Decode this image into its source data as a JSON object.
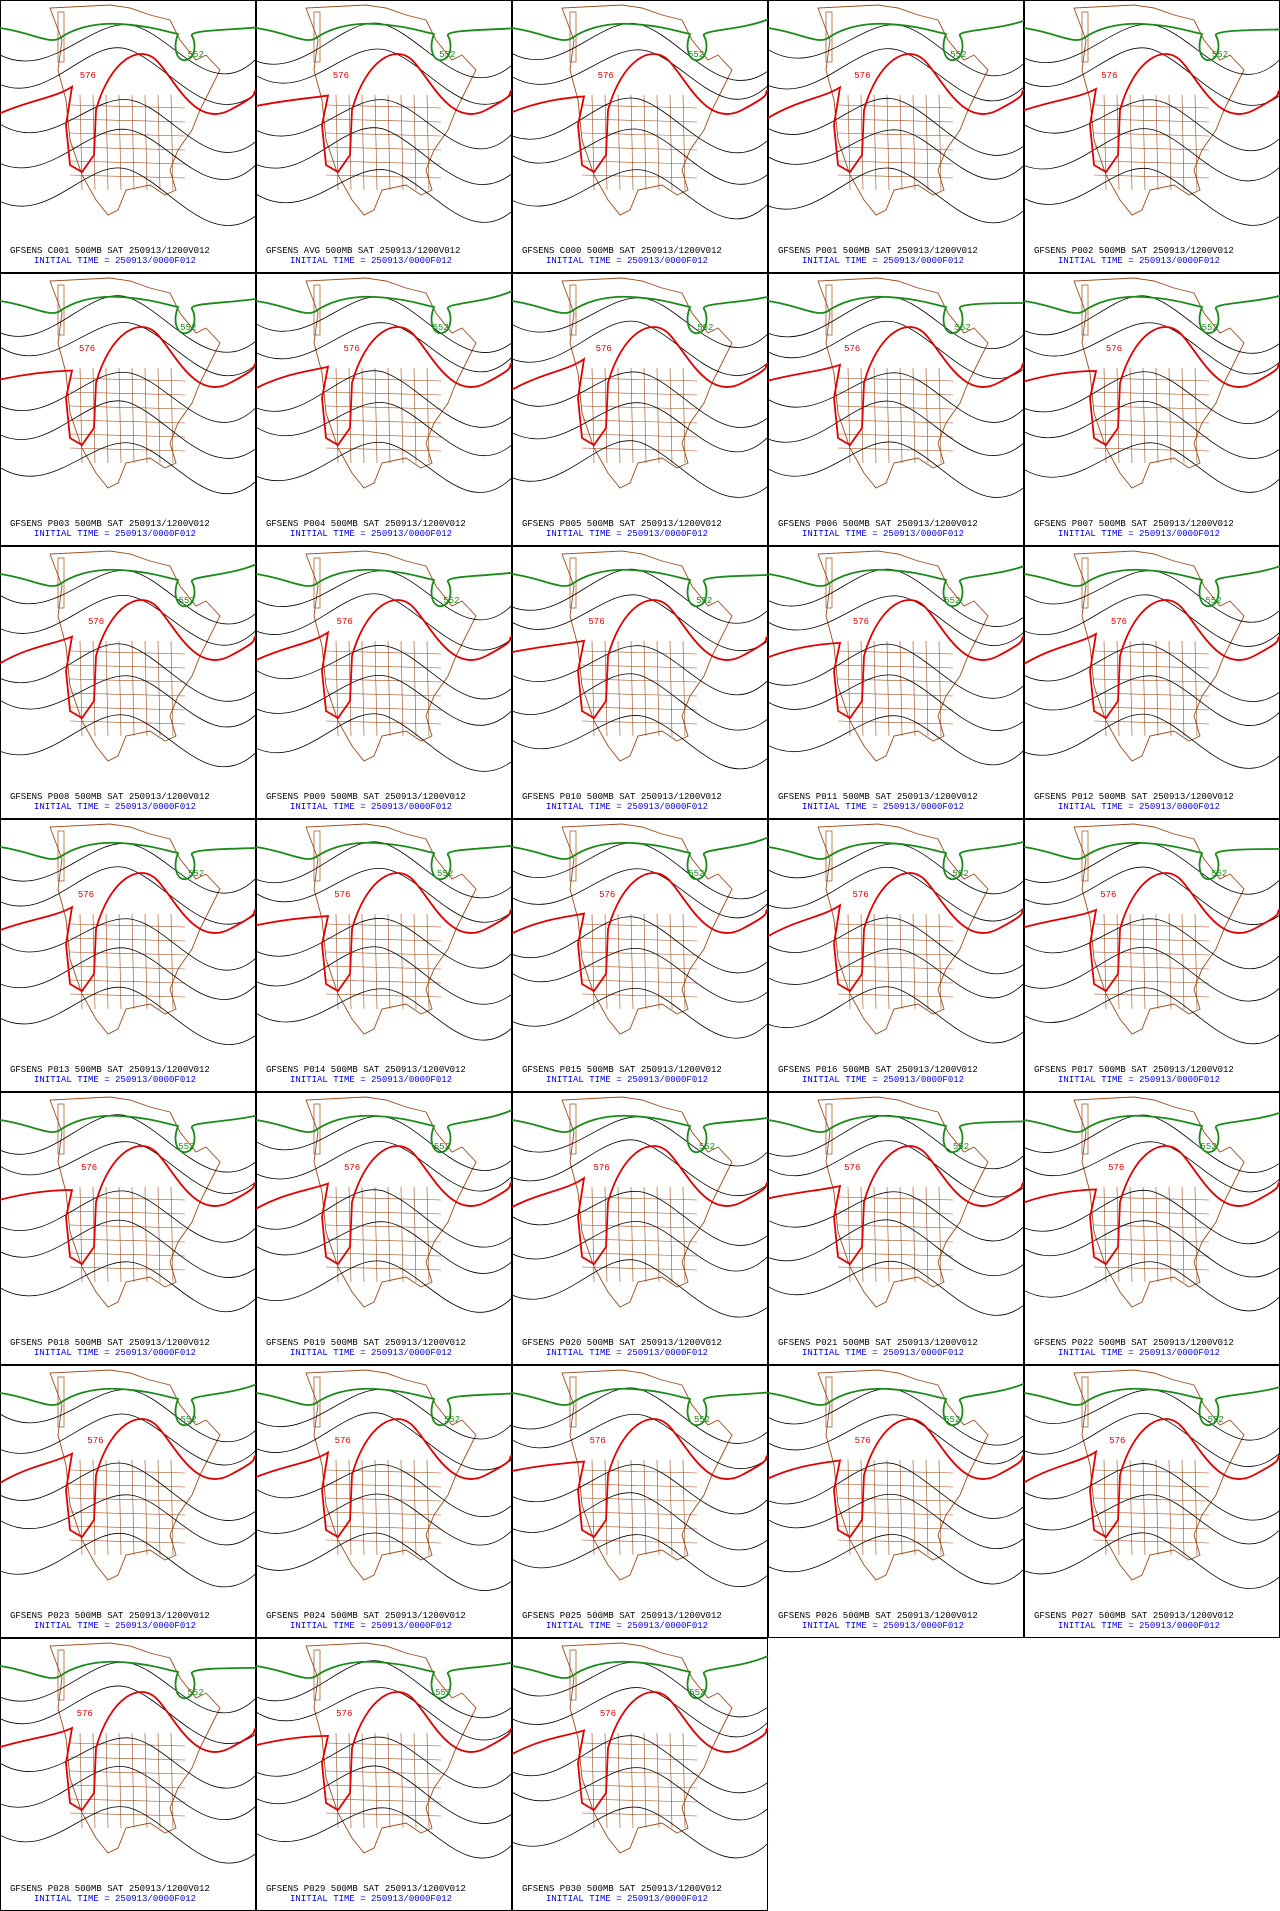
{
  "panels": [
    {
      "title": "GFSENS C001 500MB SAT 250913/1200V012",
      "init": "INITIAL TIME = 250913/0000F012",
      "labels": [
        {
          "text": "552",
          "color": "#1a8a1a"
        },
        {
          "text": "576",
          "color": "#e00000"
        }
      ]
    },
    {
      "title": "GFSENS AVG 500MB SAT 250913/1200V012",
      "init": "INITIAL TIME = 250913/0000F012",
      "labels": [
        {
          "text": "552",
          "color": "#1a8a1a"
        },
        {
          "text": "576",
          "color": "#e00000"
        }
      ]
    },
    {
      "title": "GFSENS C000 500MB SAT 250913/1200V012",
      "init": "INITIAL TIME = 250913/0000F012",
      "labels": [
        {
          "text": "552",
          "color": "#1a8a1a"
        },
        {
          "text": "576",
          "color": "#e00000"
        }
      ]
    },
    {
      "title": "GFSENS P001 500MB SAT 250913/1200V012",
      "init": "INITIAL TIME = 250913/0000F012",
      "labels": [
        {
          "text": "552",
          "color": "#1a8a1a"
        },
        {
          "text": "576",
          "color": "#e00000"
        }
      ]
    },
    {
      "title": "GFSENS P002 500MB SAT 250913/1200V012",
      "init": "INITIAL TIME = 250913/0000F012",
      "labels": [
        {
          "text": "552",
          "color": "#1a8a1a"
        },
        {
          "text": "576",
          "color": "#e00000"
        }
      ]
    },
    {
      "title": "GFSENS P003 500MB SAT 250913/1200V012",
      "init": "INITIAL TIME = 250913/0000F012",
      "labels": [
        {
          "text": "552",
          "color": "#1a8a1a"
        },
        {
          "text": "576",
          "color": "#e00000"
        }
      ]
    },
    {
      "title": "GFSENS P004 500MB SAT 250913/1200V012",
      "init": "INITIAL TIME = 250913/0000F012",
      "labels": [
        {
          "text": "552",
          "color": "#1a8a1a"
        },
        {
          "text": "576",
          "color": "#e00000"
        }
      ]
    },
    {
      "title": "GFSENS P005 500MB SAT 250913/1200V012",
      "init": "INITIAL TIME = 250913/0000F012",
      "labels": [
        {
          "text": "552",
          "color": "#1a8a1a"
        },
        {
          "text": "576",
          "color": "#e00000"
        }
      ]
    },
    {
      "title": "GFSENS P006 500MB SAT 250913/1200V012",
      "init": "INITIAL TIME = 250913/0000F012",
      "labels": [
        {
          "text": "552",
          "color": "#1a8a1a"
        },
        {
          "text": "576",
          "color": "#e00000"
        }
      ]
    },
    {
      "title": "GFSENS P007 500MB SAT 250913/1200V012",
      "init": "INITIAL TIME = 250913/0000F012",
      "labels": [
        {
          "text": "552",
          "color": "#1a8a1a"
        },
        {
          "text": "576",
          "color": "#e00000"
        }
      ]
    },
    {
      "title": "GFSENS P008 500MB SAT 250913/1200V012",
      "init": "INITIAL TIME = 250913/0000F012",
      "labels": [
        {
          "text": "552",
          "color": "#1a8a1a"
        },
        {
          "text": "576",
          "color": "#e00000"
        }
      ]
    },
    {
      "title": "GFSENS P009 500MB SAT 250913/1200V012",
      "init": "INITIAL TIME = 250913/0000F012",
      "labels": [
        {
          "text": "552",
          "color": "#1a8a1a"
        },
        {
          "text": "576",
          "color": "#e00000"
        }
      ]
    },
    {
      "title": "GFSENS P010 500MB SAT 250913/1200V012",
      "init": "INITIAL TIME = 250913/0000F012",
      "labels": [
        {
          "text": "552",
          "color": "#1a8a1a"
        },
        {
          "text": "576",
          "color": "#e00000"
        }
      ]
    },
    {
      "title": "GFSENS P011 500MB SAT 250913/1200V012",
      "init": "INITIAL TIME = 250913/0000F012",
      "labels": [
        {
          "text": "552",
          "color": "#1a8a1a"
        },
        {
          "text": "576",
          "color": "#e00000"
        }
      ]
    },
    {
      "title": "GFSENS P012 500MB SAT 250913/1200V012",
      "init": "INITIAL TIME = 250913/0000F012",
      "labels": [
        {
          "text": "552",
          "color": "#1a8a1a"
        },
        {
          "text": "576",
          "color": "#e00000"
        }
      ]
    },
    {
      "title": "GFSENS P013 500MB SAT 250913/1200V012",
      "init": "INITIAL TIME = 250913/0000F012",
      "labels": [
        {
          "text": "552",
          "color": "#1a8a1a"
        },
        {
          "text": "576",
          "color": "#e00000"
        }
      ]
    },
    {
      "title": "GFSENS P014 500MB SAT 250913/1200V012",
      "init": "INITIAL TIME = 250913/0000F012",
      "labels": [
        {
          "text": "552",
          "color": "#1a8a1a"
        },
        {
          "text": "576",
          "color": "#e00000"
        }
      ]
    },
    {
      "title": "GFSENS P015 500MB SAT 250913/1200V012",
      "init": "INITIAL TIME = 250913/0000F012",
      "labels": [
        {
          "text": "552",
          "color": "#1a8a1a"
        },
        {
          "text": "576",
          "color": "#e00000"
        }
      ]
    },
    {
      "title": "GFSENS P016 500MB SAT 250913/1200V012",
      "init": "INITIAL TIME = 250913/0000F012",
      "labels": [
        {
          "text": "552",
          "color": "#1a8a1a"
        },
        {
          "text": "576",
          "color": "#e00000"
        }
      ]
    },
    {
      "title": "GFSENS P017 500MB SAT 250913/1200V012",
      "init": "INITIAL TIME = 250913/0000F012",
      "labels": [
        {
          "text": "552",
          "color": "#1a8a1a"
        },
        {
          "text": "576",
          "color": "#e00000"
        }
      ]
    },
    {
      "title": "GFSENS P018 500MB SAT 250913/1200V012",
      "init": "INITIAL TIME = 250913/0000F012",
      "labels": [
        {
          "text": "552",
          "color": "#1a8a1a"
        },
        {
          "text": "576",
          "color": "#e00000"
        }
      ]
    },
    {
      "title": "GFSENS P019 500MB SAT 250913/1200V012",
      "init": "INITIAL TIME = 250913/0000F012",
      "labels": [
        {
          "text": "552",
          "color": "#1a8a1a"
        },
        {
          "text": "576",
          "color": "#e00000"
        }
      ]
    },
    {
      "title": "GFSENS P020 500MB SAT 250913/1200V012",
      "init": "INITIAL TIME = 250913/0000F012",
      "labels": [
        {
          "text": "552",
          "color": "#1a8a1a"
        },
        {
          "text": "576",
          "color": "#e00000"
        }
      ]
    },
    {
      "title": "GFSENS P021 500MB SAT 250913/1200V012",
      "init": "INITIAL TIME = 250913/0000F012",
      "labels": [
        {
          "text": "552",
          "color": "#1a8a1a"
        },
        {
          "text": "576",
          "color": "#e00000"
        }
      ]
    },
    {
      "title": "GFSENS P022 500MB SAT 250913/1200V012",
      "init": "INITIAL TIME = 250913/0000F012",
      "labels": [
        {
          "text": "552",
          "color": "#1a8a1a"
        },
        {
          "text": "576",
          "color": "#e00000"
        }
      ]
    },
    {
      "title": "GFSENS P023 500MB SAT 250913/1200V012",
      "init": "INITIAL TIME = 250913/0000F012",
      "labels": [
        {
          "text": "552",
          "color": "#1a8a1a"
        },
        {
          "text": "576",
          "color": "#e00000"
        }
      ]
    },
    {
      "title": "GFSENS P024 500MB SAT 250913/1200V012",
      "init": "INITIAL TIME = 250913/0000F012",
      "labels": [
        {
          "text": "552",
          "color": "#1a8a1a"
        },
        {
          "text": "576",
          "color": "#e00000"
        }
      ]
    },
    {
      "title": "GFSENS P025 500MB SAT 250913/1200V012",
      "init": "INITIAL TIME = 250913/0000F012",
      "labels": [
        {
          "text": "552",
          "color": "#1a8a1a"
        },
        {
          "text": "576",
          "color": "#e00000"
        }
      ]
    },
    {
      "title": "GFSENS P026 500MB SAT 250913/1200V012",
      "init": "INITIAL TIME = 250913/0000F012",
      "labels": [
        {
          "text": "552",
          "color": "#1a8a1a"
        },
        {
          "text": "576",
          "color": "#e00000"
        }
      ]
    },
    {
      "title": "GFSENS P027 500MB SAT 250913/1200V012",
      "init": "INITIAL TIME = 250913/0000F012",
      "labels": [
        {
          "text": "552",
          "color": "#1a8a1a"
        },
        {
          "text": "576",
          "color": "#e00000"
        }
      ]
    },
    {
      "title": "GFSENS P028 500MB SAT 250913/1200V012",
      "init": "INITIAL TIME = 250913/0000F012",
      "labels": [
        {
          "text": "552",
          "color": "#1a8a1a"
        },
        {
          "text": "576",
          "color": "#e00000"
        }
      ]
    },
    {
      "title": "GFSENS P029 500MB SAT 250913/1200V012",
      "init": "INITIAL TIME = 250913/0000F012",
      "labels": [
        {
          "text": "552",
          "color": "#1a8a1a"
        },
        {
          "text": "576",
          "color": "#e00000"
        }
      ]
    },
    {
      "title": "GFSENS P030 500MB SAT 250913/1200V012",
      "init": "INITIAL TIME = 250913/0000F012",
      "labels": [
        {
          "text": "552",
          "color": "#1a8a1a"
        },
        {
          "text": "576",
          "color": "#e00000"
        }
      ]
    }
  ]
}
